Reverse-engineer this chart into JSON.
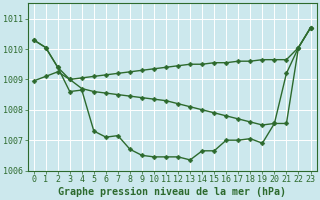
{
  "xlabel": "Graphe pression niveau de la mer (hPa)",
  "background_color": "#cce8ed",
  "grid_color": "#ffffff",
  "line_color": "#2d6a2d",
  "marker": "D",
  "markersize": 2.5,
  "linewidth": 1.0,
  "ylim": [
    1006.0,
    1011.5
  ],
  "xlim": [
    -0.5,
    23.5
  ],
  "yticks": [
    1006,
    1007,
    1008,
    1009,
    1010,
    1011
  ],
  "xticks": [
    0,
    1,
    2,
    3,
    4,
    5,
    6,
    7,
    8,
    9,
    10,
    11,
    12,
    13,
    14,
    15,
    16,
    17,
    18,
    19,
    20,
    21,
    22,
    23
  ],
  "s1": [
    1010.3,
    1010.05,
    1009.4,
    1009.0,
    1008.7,
    1008.6,
    1008.55,
    1008.5,
    1008.45,
    1008.4,
    1008.35,
    1008.3,
    1008.2,
    1008.1,
    1008.0,
    1007.9,
    1007.8,
    1007.7,
    1007.6,
    1007.5,
    1007.55,
    1007.55,
    1010.05,
    1010.7
  ],
  "s2": [
    1008.95,
    1009.1,
    1009.25,
    1009.0,
    1009.05,
    1009.1,
    1009.15,
    1009.2,
    1009.25,
    1009.3,
    1009.35,
    1009.4,
    1009.45,
    1009.5,
    1009.5,
    1009.55,
    1009.55,
    1009.6,
    1009.6,
    1009.65,
    1009.65,
    1009.65,
    1010.05,
    1010.7
  ],
  "s3": [
    1010.3,
    1010.05,
    1009.4,
    1008.6,
    1008.65,
    1007.3,
    1007.1,
    1007.15,
    1006.7,
    1006.5,
    1006.45,
    1006.45,
    1006.45,
    1006.35,
    1006.65,
    1006.65,
    1007.0,
    1007.0,
    1007.05,
    1006.9,
    1007.55,
    1009.2,
    1010.05,
    1010.7
  ],
  "tick_fontsize": 6.0,
  "xlabel_fontsize": 7.2,
  "tick_color": "#2d6a2d",
  "xlabel_color": "#2d6a2d",
  "xlabel_fontweight": "bold"
}
